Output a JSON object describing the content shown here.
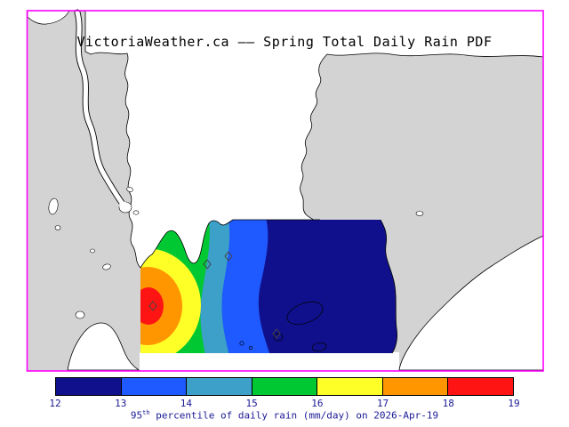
{
  "title": "VictoriaWeather.ca —— Spring Total Daily Rain PDF",
  "colorbar": {
    "tick_labels": [
      "12",
      "13",
      "14",
      "15",
      "16",
      "17",
      "18",
      "19"
    ],
    "segment_colors": [
      "#10108c",
      "#1e5aff",
      "#3ca0c8",
      "#00c832",
      "#ffff28",
      "#ff9600",
      "#ff1414"
    ],
    "label_color": "#1a1a96",
    "frame_color": "#ff00ff"
  },
  "caption": {
    "value": "95",
    "superscript": "th",
    "rest": " percentile of daily rain (mm/day) on 2026-Apr-19"
  },
  "chart_data": {
    "type": "heatmap",
    "subtype": "filled-contour-map",
    "title": "VictoriaWeather.ca —— Spring Total Daily Rain PDF",
    "variable": "95th percentile of daily rain",
    "units": "mm/day",
    "season": "Spring",
    "date": "2026-Apr-19",
    "scale_min": 12,
    "scale_max": 19,
    "scale_ticks": [
      12,
      13,
      14,
      15,
      16,
      17,
      18,
      19
    ],
    "legend_position": "bottom",
    "bands": [
      {
        "range": "12-13",
        "color": "#10108c"
      },
      {
        "range": "13-14",
        "color": "#1e5aff"
      },
      {
        "range": "14-15",
        "color": "#3ca0c8"
      },
      {
        "range": "15-16",
        "color": "#00c832"
      },
      {
        "range": "16-17",
        "color": "#ffff28"
      },
      {
        "range": "17-18",
        "color": "#ff9600"
      },
      {
        "range": "18-19",
        "color": "#ff1414"
      }
    ],
    "station_marker_count": 4,
    "spatial_pattern": "Values decrease west to east across the Victoria model domain: maximum 18-19 mm/day (red) at the western edge, through orange, yellow, green, teal and blue bands, to a broad minimum of 12-13 mm/day (dark navy) over the eastern half."
  }
}
